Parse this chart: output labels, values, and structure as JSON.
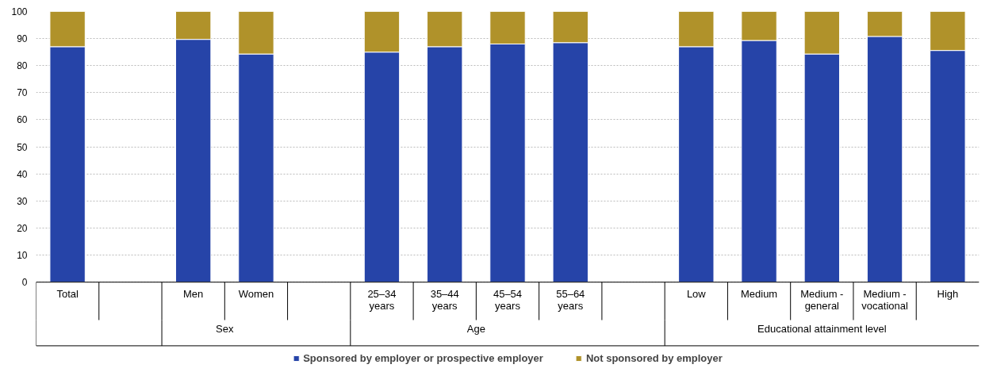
{
  "chart_data": {
    "type": "bar",
    "stacked": true,
    "categories": [
      "Total",
      null,
      "Men",
      "Women",
      null,
      "25–34 years",
      "35–44 years",
      "45–54 years",
      "55–64 years",
      null,
      "Low",
      "Medium",
      "Medium - general",
      "Medium - vocational",
      "High"
    ],
    "series": [
      {
        "name": "Sponsored by employer or prospective employer",
        "color": "#2644a8",
        "values": [
          87,
          null,
          89.7,
          84.3,
          null,
          85,
          87,
          88,
          88.5,
          null,
          87,
          89.3,
          84.3,
          90.8,
          85.6
        ]
      },
      {
        "name": "Not sponsored by employer",
        "color": "#b0922a",
        "values": [
          13,
          null,
          10.3,
          15.7,
          null,
          15,
          13,
          12,
          11.5,
          null,
          13,
          10.7,
          15.7,
          9.2,
          14.4
        ]
      }
    ],
    "annotations": [
      "Sex",
      "Age",
      "Educational attainment level"
    ],
    "ylim": [
      0,
      100
    ],
    "yticks": [
      0,
      10,
      20,
      30,
      40,
      50,
      60,
      70,
      80,
      90,
      100
    ],
    "grid": "y",
    "legend": "bottom"
  }
}
